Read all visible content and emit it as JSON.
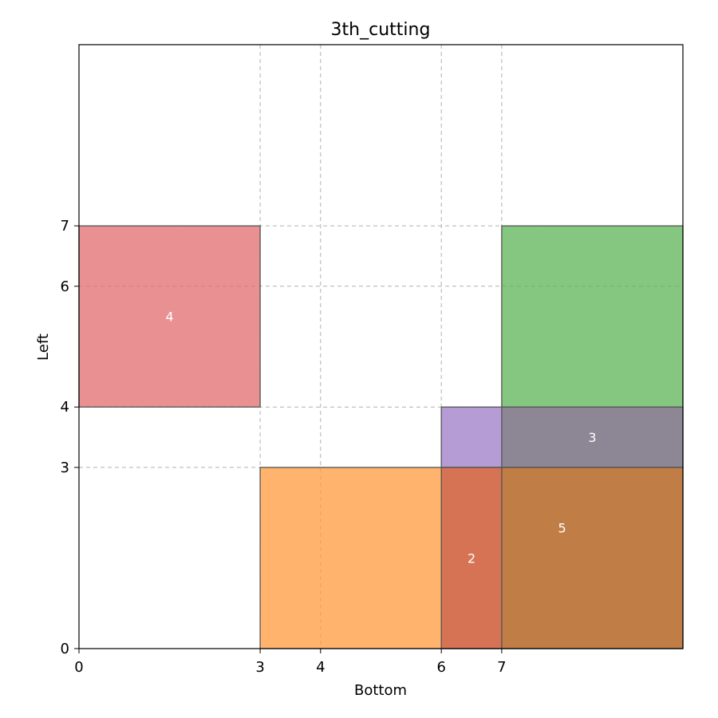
{
  "chart_data": {
    "type": "rectangles",
    "title": "3th_cutting",
    "xlabel": "Bottom",
    "ylabel": "Left",
    "xlim": [
      0,
      10
    ],
    "ylim": [
      0,
      10
    ],
    "xticks": [
      0,
      3,
      4,
      6,
      7
    ],
    "yticks": [
      0,
      3,
      4,
      6,
      7
    ],
    "grid": true,
    "rects": [
      {
        "x": 0,
        "y": 4,
        "w": 3,
        "h": 3,
        "color": "#e06b6e",
        "label": "4",
        "label_x": 1.5,
        "label_y": 5.5
      },
      {
        "x": 7,
        "y": 4,
        "w": 3,
        "h": 3,
        "color": "#5cb356",
        "label": ""
      },
      {
        "x": 6,
        "y": 3,
        "w": 4,
        "h": 1,
        "color": "#9d7bc7",
        "label": ""
      },
      {
        "x": 3,
        "y": 0,
        "w": 4,
        "h": 3,
        "color": "#ff9a3c",
        "label": ""
      },
      {
        "x": 7,
        "y": 3,
        "w": 3,
        "h": 1,
        "color": "#7f7f7f",
        "label": "3",
        "label_x": 8.5,
        "label_y": 3.5
      },
      {
        "x": 6,
        "y": 0,
        "w": 4,
        "h": 3,
        "color": "#c95e4e",
        "label": "2",
        "label_x": 6.5,
        "label_y": 1.5
      },
      {
        "x": 7,
        "y": 0,
        "w": 3,
        "h": 3,
        "color": "#b87a35",
        "label": "5",
        "label_x": 8.0,
        "label_y": 2.0
      }
    ]
  }
}
